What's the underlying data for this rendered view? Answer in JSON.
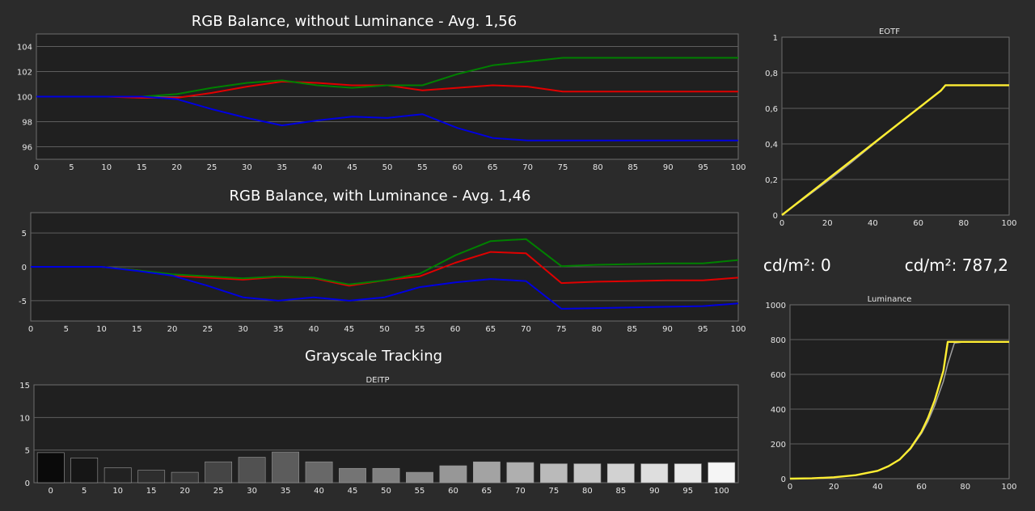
{
  "readouts": {
    "left": "cd/m²: 0",
    "right": "cd/m²: 787,2"
  },
  "chart_data": [
    {
      "id": "rgb1",
      "type": "line",
      "title": "RGB Balance, without Luminance - Avg. 1,56",
      "x": [
        0,
        5,
        10,
        15,
        20,
        25,
        30,
        35,
        40,
        45,
        50,
        55,
        60,
        65,
        70,
        75,
        80,
        85,
        90,
        95,
        100
      ],
      "xticks": [
        0,
        5,
        10,
        15,
        20,
        25,
        30,
        35,
        40,
        45,
        50,
        55,
        60,
        65,
        70,
        75,
        80,
        85,
        90,
        95,
        100
      ],
      "ylim": [
        95,
        105
      ],
      "yticks": [
        96,
        98,
        100,
        102,
        104
      ],
      "grid": true,
      "series": [
        {
          "color": "#e00000",
          "values": [
            100,
            100,
            100,
            99.9,
            99.9,
            100.3,
            100.8,
            101.2,
            101.1,
            100.9,
            100.9,
            100.5,
            100.7,
            100.9,
            100.8,
            100.4,
            100.4,
            100.4,
            100.4,
            100.4,
            100.4
          ]
        },
        {
          "color": "#008000",
          "values": [
            100,
            100,
            100,
            100,
            100.2,
            100.7,
            101.1,
            101.3,
            100.9,
            100.7,
            100.9,
            100.9,
            101.8,
            102.5,
            102.8,
            103.1,
            103.1,
            103.1,
            103.1,
            103.1,
            103.1
          ]
        },
        {
          "color": "#0000e0",
          "values": [
            100,
            100,
            100,
            100,
            99.8,
            99,
            98.3,
            97.7,
            98.1,
            98.4,
            98.3,
            98.6,
            97.5,
            96.7,
            96.5,
            96.5,
            96.5,
            96.5,
            96.5,
            96.5,
            96.5
          ]
        }
      ]
    },
    {
      "id": "rgb2",
      "type": "line",
      "title": "RGB Balance, with Luminance - Avg. 1,46",
      "x": [
        0,
        5,
        10,
        15,
        20,
        25,
        30,
        35,
        40,
        45,
        50,
        55,
        60,
        65,
        70,
        75,
        80,
        85,
        90,
        95,
        100
      ],
      "xticks": [
        0,
        5,
        10,
        15,
        20,
        25,
        30,
        35,
        40,
        45,
        50,
        55,
        60,
        65,
        70,
        75,
        80,
        85,
        90,
        95,
        100
      ],
      "ylim": [
        -8,
        8
      ],
      "yticks": [
        -5,
        0,
        5
      ],
      "grid": true,
      "series": [
        {
          "color": "#e00000",
          "values": [
            0,
            0,
            0,
            -0.5,
            -1.3,
            -1.6,
            -1.9,
            -1.5,
            -1.7,
            -2.8,
            -2,
            -1.4,
            0.6,
            2.2,
            2,
            -2.4,
            -2.2,
            -2.1,
            -2,
            -2,
            -1.6
          ]
        },
        {
          "color": "#008000",
          "values": [
            0,
            0,
            0,
            -0.5,
            -1.1,
            -1.4,
            -1.7,
            -1.4,
            -1.6,
            -2.6,
            -2,
            -1,
            1.7,
            3.8,
            4.1,
            0.1,
            0.3,
            0.4,
            0.5,
            0.5,
            1
          ]
        },
        {
          "color": "#0000e0",
          "values": [
            0,
            0,
            0,
            -0.6,
            -1.3,
            -2.8,
            -4.5,
            -5,
            -4.5,
            -5,
            -4.5,
            -3,
            -2.3,
            -1.8,
            -2.1,
            -6.2,
            -6.1,
            -6,
            -5.9,
            -5.8,
            -5.4
          ]
        }
      ]
    },
    {
      "id": "gray",
      "type": "bar",
      "title": "Grayscale Tracking",
      "subtitle": "DEITP",
      "categories": [
        "0",
        "5",
        "10",
        "15",
        "20",
        "25",
        "30",
        "35",
        "40",
        "45",
        "50",
        "55",
        "60",
        "65",
        "70",
        "75",
        "80",
        "85",
        "90",
        "95",
        "100"
      ],
      "values": [
        4.6,
        3.8,
        2.3,
        1.9,
        1.6,
        3.2,
        3.9,
        4.7,
        3.2,
        2.2,
        2.2,
        1.6,
        2.6,
        3.2,
        3.1,
        2.9,
        2.9,
        2.9,
        2.9,
        2.9,
        3.1
      ],
      "ylim": [
        0,
        15
      ],
      "yticks": [
        0,
        5,
        10,
        15
      ],
      "grid": true
    },
    {
      "id": "eotf",
      "type": "line",
      "title": "EOTF",
      "x": [
        0,
        10,
        20,
        30,
        40,
        50,
        60,
        70,
        72,
        75,
        80,
        90,
        100
      ],
      "xticks": [
        0,
        20,
        40,
        60,
        80,
        100
      ],
      "ylim": [
        0,
        1
      ],
      "yticks": [
        0,
        0.2,
        0.4,
        0.6,
        0.8,
        1
      ],
      "ytick_labels": [
        "0",
        "0,2",
        "0,4",
        "0,6",
        "0,8",
        "1"
      ],
      "grid": true,
      "series": [
        {
          "color": "#a0a0a0",
          "values": [
            0,
            0.095,
            0.19,
            0.29,
            0.395,
            0.5,
            0.6,
            0.7,
            0.73,
            0.73,
            0.73,
            0.73,
            0.73
          ]
        },
        {
          "color": "#ffee33",
          "values": [
            0,
            0.1,
            0.2,
            0.3,
            0.4,
            0.5,
            0.6,
            0.7,
            0.73,
            0.73,
            0.73,
            0.73,
            0.73
          ]
        }
      ]
    },
    {
      "id": "lum",
      "type": "line",
      "title": "Luminance",
      "x": [
        0,
        10,
        20,
        30,
        40,
        45,
        50,
        55,
        60,
        63,
        66,
        70,
        72,
        75,
        80,
        90,
        100
      ],
      "xticks": [
        0,
        20,
        40,
        60,
        80,
        100
      ],
      "ylim": [
        0,
        1000
      ],
      "yticks": [
        0,
        200,
        400,
        600,
        800,
        1000
      ],
      "grid": true,
      "series": [
        {
          "color": "#a0a0a0",
          "values": [
            0,
            2,
            8,
            20,
            45,
            72,
            110,
            170,
            260,
            330,
            420,
            560,
            660,
            780,
            787,
            787,
            787
          ]
        },
        {
          "color": "#ffee33",
          "values": [
            0,
            2,
            8,
            20,
            45,
            72,
            110,
            175,
            270,
            350,
            450,
            620,
            787,
            787,
            787,
            787,
            787
          ]
        }
      ]
    }
  ]
}
